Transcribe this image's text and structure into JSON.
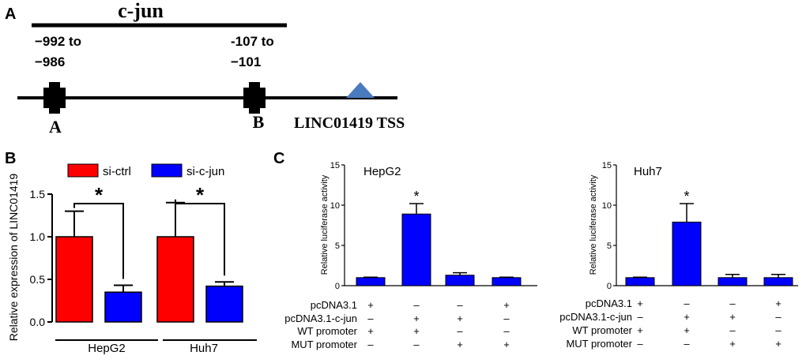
{
  "panel_a": {
    "letter": "A",
    "tf_label": "c-jun",
    "site_a": {
      "range_line1": "−992 to",
      "range_line2": "−986",
      "letter": "A"
    },
    "site_b": {
      "range_line1": "-107 to",
      "range_line2": "−101",
      "letter": "B"
    },
    "tss_label": "LINC01419 TSS",
    "colors": {
      "tss_marker": "#4a7bbf",
      "site_marker": "#000000"
    }
  },
  "chart_data": [
    {
      "id": "panel_b",
      "type": "bar",
      "letter": "B",
      "title": "",
      "xlabel": "",
      "ylabel": "Relative expression of LINC01419",
      "categories": [
        "HepG2",
        "Huh7"
      ],
      "series": [
        {
          "name": "si-ctrl",
          "color": "#ff0000",
          "values": [
            1.0,
            1.0
          ],
          "errors": [
            0.3,
            0.4
          ]
        },
        {
          "name": "si-c-jun",
          "color": "#0000ff",
          "values": [
            0.35,
            0.42
          ],
          "errors": [
            0.08,
            0.05
          ]
        }
      ],
      "ylim": [
        0,
        1.5
      ],
      "yticks": [
        "0.0",
        "0.5",
        "1.0",
        "1.5"
      ],
      "significance": [
        "*",
        "*"
      ],
      "legend": "top"
    },
    {
      "id": "panel_c1",
      "type": "bar",
      "letter": "C",
      "title": "HepG2",
      "ylabel": "Relative luciferase activity",
      "bar_color": "#0000ff",
      "values": [
        1.0,
        8.9,
        1.3,
        1.0
      ],
      "errors": [
        0.05,
        1.3,
        0.3,
        0.05
      ],
      "ylim": [
        0,
        15
      ],
      "yticks": [
        "0",
        "5",
        "10",
        "15"
      ],
      "significance": [
        "",
        "*",
        "",
        ""
      ],
      "conditions": [
        {
          "label": "pcDNA3.1",
          "marks": [
            "+",
            "–",
            "–",
            "+"
          ]
        },
        {
          "label": "pcDNA3.1-c-jun",
          "marks": [
            "–",
            "+",
            "+",
            "–"
          ]
        },
        {
          "label": "WT promoter",
          "marks": [
            "+",
            "+",
            "–",
            "–"
          ]
        },
        {
          "label": "MUT promoter",
          "marks": [
            "–",
            "–",
            "+",
            "+"
          ]
        }
      ]
    },
    {
      "id": "panel_c2",
      "type": "bar",
      "title": "Huh7",
      "ylabel": "Relative luciferase activity",
      "bar_color": "#0000ff",
      "values": [
        1.0,
        7.9,
        1.0,
        1.0
      ],
      "errors": [
        0.05,
        2.3,
        0.4,
        0.4
      ],
      "ylim": [
        0,
        15
      ],
      "yticks": [
        "0",
        "5",
        "10",
        "15"
      ],
      "significance": [
        "",
        "*",
        "",
        ""
      ],
      "conditions": [
        {
          "label": "pcDNA3.1",
          "marks": [
            "+",
            "–",
            "–",
            "+"
          ]
        },
        {
          "label": "pcDNA3.1-c-jun",
          "marks": [
            "–",
            "+",
            "+",
            "–"
          ]
        },
        {
          "label": "WT promoter",
          "marks": [
            "+",
            "+",
            "–",
            "–"
          ]
        },
        {
          "label": "MUT promoter",
          "marks": [
            "–",
            "–",
            "+",
            "+"
          ]
        }
      ]
    }
  ]
}
